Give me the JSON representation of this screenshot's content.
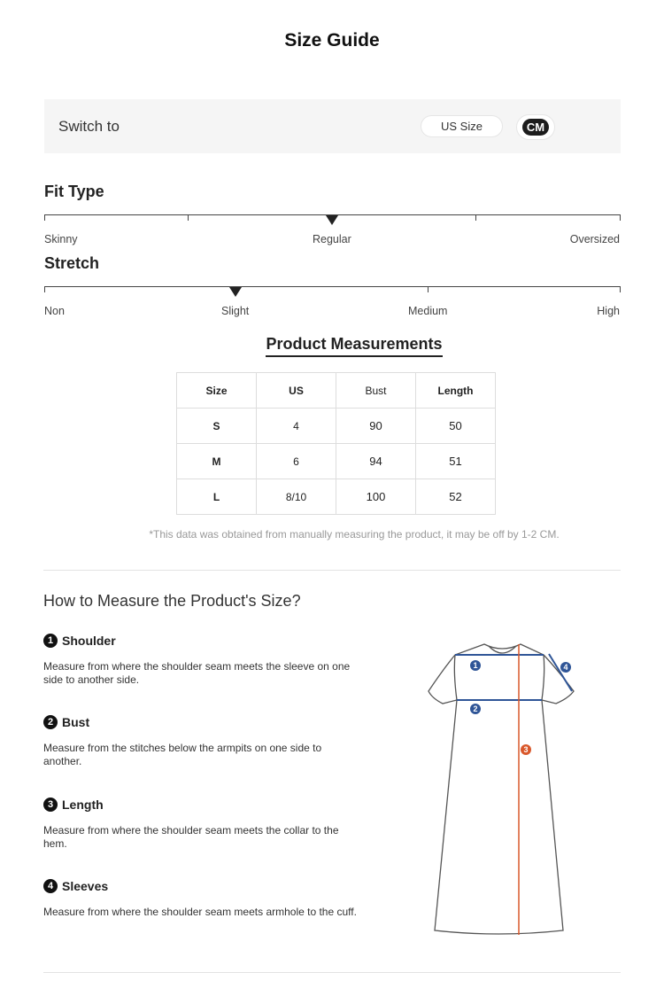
{
  "title": "Size Guide",
  "switch": {
    "label": "Switch to",
    "options": [
      "US Size",
      "CM"
    ],
    "selected": "CM"
  },
  "fit_type": {
    "title": "Fit Type",
    "labels": [
      "Skinny",
      "Regular",
      "Oversized"
    ],
    "selected": "Regular"
  },
  "stretch": {
    "title": "Stretch",
    "labels": [
      "Non",
      "Slight",
      "Medium",
      "High"
    ],
    "selected": "Slight"
  },
  "measurements": {
    "title": "Product Measurements",
    "headers": [
      "Size",
      "US",
      "Bust",
      "Length"
    ],
    "rows": [
      [
        "S",
        "4",
        "90",
        "50"
      ],
      [
        "M",
        "6",
        "94",
        "51"
      ],
      [
        "L",
        "8/10",
        "100",
        "52"
      ]
    ],
    "note": "*This data was obtained from manually measuring the product, it may be off by 1-2 CM."
  },
  "how": {
    "title": "How to Measure the Product's Size?",
    "steps": [
      {
        "num": "1",
        "name": "Shoulder",
        "desc": "Measure from where the shoulder seam meets the sleeve on one side to another side."
      },
      {
        "num": "2",
        "name": "Bust",
        "desc": "Measure from the stitches below the armpits on one side to another."
      },
      {
        "num": "3",
        "name": "Length",
        "desc": "Measure from where the shoulder seam meets the collar to the hem."
      },
      {
        "num": "4",
        "name": "Sleeves",
        "desc": "Measure from where the shoulder seam meets armhole to the cuff."
      }
    ]
  },
  "colors": {
    "blue": "#2f5597",
    "orange": "#d9582b"
  }
}
